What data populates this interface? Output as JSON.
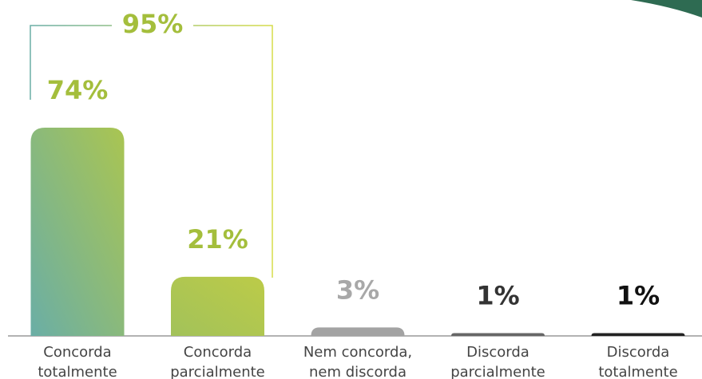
{
  "chart_data": {
    "type": "bar",
    "categories": [
      [
        "Concorda",
        "totalmente"
      ],
      [
        "Concorda",
        "parcialmente"
      ],
      [
        "Nem concorda,",
        "nem discorda"
      ],
      [
        "Discorda",
        "parcialmente"
      ],
      [
        "Discorda",
        "totalmente"
      ]
    ],
    "values": [
      74,
      21,
      3,
      1,
      1
    ],
    "value_labels": [
      "74%",
      "21%",
      "3%",
      "1%",
      "1%"
    ],
    "colors": [
      "#8fbb6a",
      "#b4c84e",
      "#a3a3a3",
      "#666666",
      "#222222"
    ],
    "label_colors": [
      "#a4be3c",
      "#a4be3c",
      "#a8a8a8",
      "#333333",
      "#111111"
    ],
    "annotation": {
      "text": "95%",
      "color": "#a4be3c"
    }
  }
}
